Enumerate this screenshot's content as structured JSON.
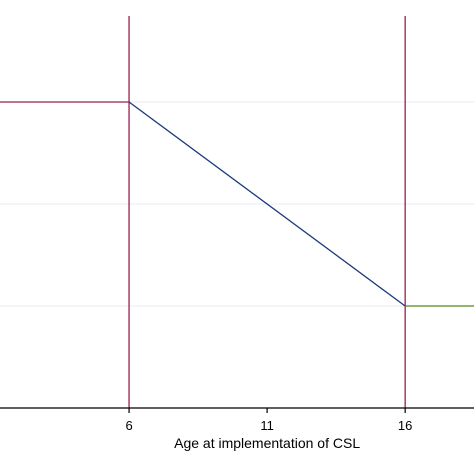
{
  "chart_data": {
    "type": "line",
    "title": "",
    "xlabel": "Age at implementation of CSL",
    "ylabel": "",
    "xlim": [
      1,
      19
    ],
    "ylim": [
      0,
      1
    ],
    "x_ticks": [
      6,
      11,
      16
    ],
    "grid": true,
    "legend": "none",
    "reference_lines": [
      {
        "x": 6,
        "color": "#9b1d4f"
      },
      {
        "x": 16,
        "color": "#9b1d4f"
      }
    ],
    "series": [
      {
        "x": [
          1,
          6
        ],
        "y": [
          0.75,
          0.75
        ],
        "color": "#9b1d4f"
      },
      {
        "x": [
          6,
          16
        ],
        "y": [
          0.75,
          0.25
        ],
        "color": "#1a3a7a"
      },
      {
        "x": [
          16,
          19
        ],
        "y": [
          0.25,
          0.25
        ],
        "color": "#4f8a1c"
      }
    ],
    "colors": {
      "axis": "#000000",
      "grid": "#e6eef2"
    }
  }
}
